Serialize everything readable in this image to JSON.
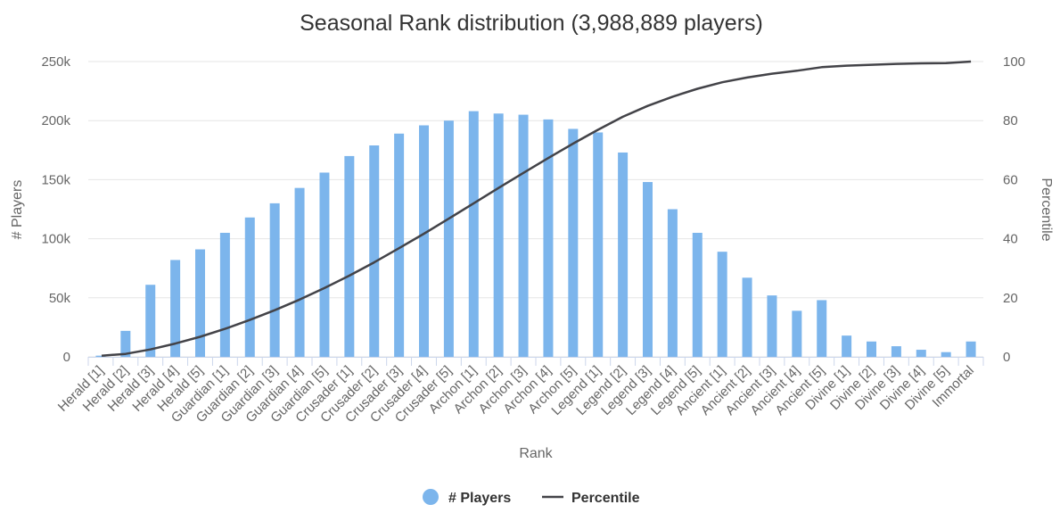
{
  "chart_data": {
    "type": "bar",
    "title": "Seasonal Rank distribution (3,988,889 players)",
    "xlabel": "Rank",
    "ylabel": "# Players",
    "y2label": "Percentile",
    "ylim": [
      0,
      250000
    ],
    "y2lim": [
      0,
      100
    ],
    "y_ticks": [
      "0",
      "50k",
      "100k",
      "150k",
      "200k",
      "250k"
    ],
    "y2_ticks": [
      "0",
      "20",
      "40",
      "60",
      "80",
      "100"
    ],
    "grid": true,
    "legend_position": "bottom-center",
    "colors": {
      "bars": "#7cb5ec",
      "line": "#434348"
    },
    "categories": [
      "Herald [1]",
      "Herald [2]",
      "Herald [3]",
      "Herald [4]",
      "Herald [5]",
      "Guardian [1]",
      "Guardian [2]",
      "Guardian [3]",
      "Guardian [4]",
      "Guardian [5]",
      "Crusader [1]",
      "Crusader [2]",
      "Crusader [3]",
      "Crusader [4]",
      "Crusader [5]",
      "Archon [1]",
      "Archon [2]",
      "Archon [3]",
      "Archon [4]",
      "Archon [5]",
      "Legend [1]",
      "Legend [2]",
      "Legend [3]",
      "Legend [4]",
      "Legend [5]",
      "Ancient [1]",
      "Ancient [2]",
      "Ancient [3]",
      "Ancient [4]",
      "Ancient [5]",
      "Divine [1]",
      "Divine [2]",
      "Divine [3]",
      "Divine [4]",
      "Divine [5]",
      "Immortal"
    ],
    "series": [
      {
        "name": "# Players",
        "type": "bar",
        "axis": "left",
        "values": [
          1000,
          22000,
          61000,
          82000,
          91000,
          105000,
          118000,
          130000,
          143000,
          156000,
          170000,
          179000,
          189000,
          196000,
          200000,
          208000,
          206000,
          205000,
          201000,
          193000,
          190000,
          173000,
          148000,
          125000,
          105000,
          89000,
          67000,
          52000,
          39000,
          48000,
          18000,
          13000,
          9000,
          6000,
          4000,
          13000
        ]
      },
      {
        "name": "Percentile",
        "type": "line",
        "axis": "right",
        "values": [
          0.4,
          1.0,
          2.5,
          4.5,
          6.8,
          9.5,
          12.5,
          15.8,
          19.4,
          23.3,
          27.5,
          32.0,
          36.8,
          41.7,
          46.8,
          52.0,
          57.2,
          62.3,
          67.3,
          72.2,
          76.9,
          81.3,
          85.0,
          88.1,
          90.8,
          93.0,
          94.6,
          95.9,
          96.9,
          98.1,
          98.6,
          98.9,
          99.2,
          99.4,
          99.5,
          100
        ]
      }
    ]
  }
}
